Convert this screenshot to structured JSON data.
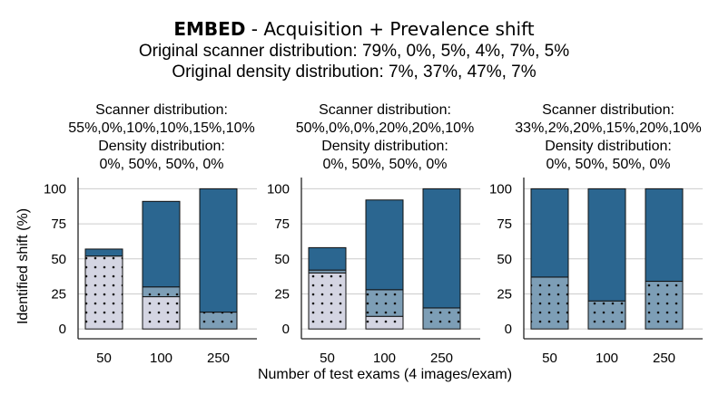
{
  "title": {
    "bold": "EMBED",
    "rest": " - Acquisition + Prevalence shift",
    "line2": "Original scanner distribution: 79%, 0%, 5%, 4%, 7%, 5%",
    "line3": "Original density distribution: 7%, 37%, 47%, 7%"
  },
  "colors": {
    "dark": "#2b6690",
    "mid": "#7d9eb6",
    "light": "#d4d5e2",
    "grid": "#cccccc"
  },
  "chart_data": {
    "type": "bar",
    "stacked": true,
    "xlabel": "Number of test exams (4 images/exam)",
    "ylabel": "Identified shift (%)",
    "ylim": [
      -7,
      108
    ],
    "yticks": [
      0,
      25,
      50,
      75,
      100
    ],
    "categories": [
      "50",
      "100",
      "250"
    ],
    "series_names": [
      "light",
      "mid",
      "dark"
    ],
    "panels": [
      {
        "title_lines": [
          "Scanner distribution:",
          "55%,0%,10%,10%,15%,10%",
          "Density distribution:",
          "0%, 50%, 50%, 0%"
        ],
        "stacks": [
          {
            "light": 52,
            "mid": 0,
            "dark": 5
          },
          {
            "light": 23,
            "mid": 7,
            "dark": 61
          },
          {
            "light": 0,
            "mid": 12,
            "dark": 88
          }
        ]
      },
      {
        "title_lines": [
          "Scanner distribution:",
          "50%,0%,0%,20%,20%,10%",
          "Density distribution:",
          "0%, 50%, 50%, 0%"
        ],
        "stacks": [
          {
            "light": 40,
            "mid": 2,
            "dark": 16
          },
          {
            "light": 9,
            "mid": 19,
            "dark": 64
          },
          {
            "light": 0,
            "mid": 15,
            "dark": 85
          }
        ]
      },
      {
        "title_lines": [
          "Scanner distribution:",
          "33%,2%,20%,15%,20%,10%",
          "Density distribution:",
          "0%, 50%, 50%, 0%"
        ],
        "stacks": [
          {
            "light": 0,
            "mid": 37,
            "dark": 63
          },
          {
            "light": 0,
            "mid": 20,
            "dark": 80
          },
          {
            "light": 0,
            "mid": 34,
            "dark": 66
          }
        ]
      }
    ]
  }
}
